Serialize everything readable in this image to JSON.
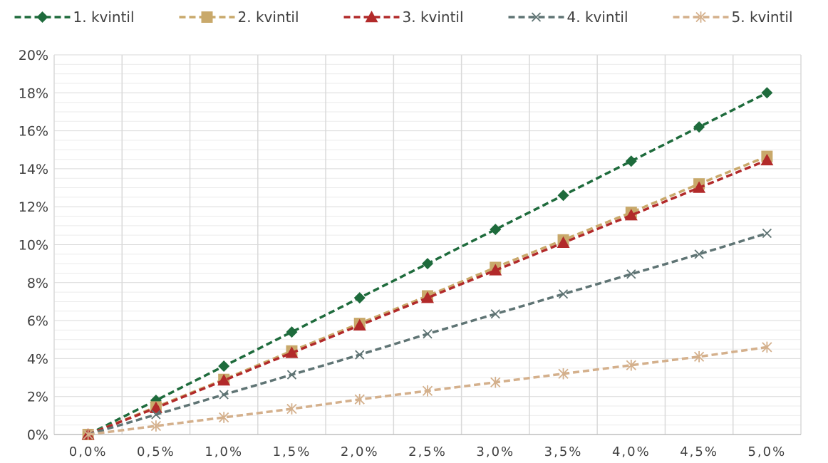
{
  "chart_data": {
    "type": "line",
    "title": "",
    "xlabel": "",
    "ylabel": "",
    "x": [
      "0,0%",
      "0,5%",
      "1,0%",
      "1,5%",
      "2,0%",
      "2,5%",
      "3,0%",
      "3,5%",
      "4,0%",
      "4,5%",
      "5,0%"
    ],
    "y_ticks": [
      "0%",
      "2%",
      "4%",
      "6%",
      "8%",
      "10%",
      "12%",
      "14%",
      "16%",
      "18%",
      "20%"
    ],
    "ylim": [
      0,
      20
    ],
    "grid": true,
    "legend_position": "top",
    "series": [
      {
        "name": "1. kvintil",
        "color": "#1e6b3c",
        "marker": "diamond",
        "values": [
          0,
          1.8,
          3.6,
          5.4,
          7.2,
          9.0,
          10.8,
          12.6,
          14.4,
          16.2,
          18.0
        ]
      },
      {
        "name": "2. kvintil",
        "color": "#c9a96b",
        "marker": "square",
        "values": [
          0,
          1.45,
          2.9,
          4.4,
          5.85,
          7.3,
          8.8,
          10.25,
          11.7,
          13.2,
          14.65
        ]
      },
      {
        "name": "3. kvintil",
        "color": "#b22a2a",
        "marker": "triangle",
        "values": [
          0,
          1.4,
          2.85,
          4.3,
          5.75,
          7.2,
          8.65,
          10.1,
          11.55,
          13.0,
          14.45
        ]
      },
      {
        "name": "4. kvintil",
        "color": "#5f7474",
        "marker": "x",
        "values": [
          0,
          1.05,
          2.1,
          3.15,
          4.2,
          5.3,
          6.35,
          7.4,
          8.45,
          9.5,
          10.6
        ]
      },
      {
        "name": "5. kvintil",
        "color": "#d4b08c",
        "marker": "star",
        "values": [
          0,
          0.45,
          0.9,
          1.35,
          1.85,
          2.3,
          2.75,
          3.2,
          3.65,
          4.1,
          4.6
        ]
      }
    ]
  }
}
